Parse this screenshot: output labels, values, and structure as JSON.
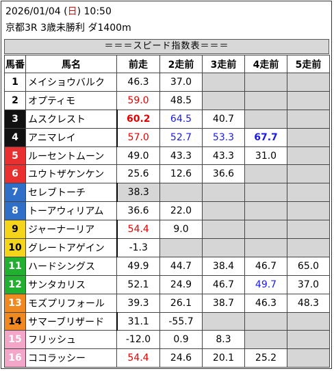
{
  "header": {
    "date": "2026/01/04 (",
    "weekday": "日",
    "time": ") 10:50",
    "race": "京都3R 3歳未勝利 ダ1400m"
  },
  "banner": "＝＝＝スピード指数表＝＝＝",
  "columns": [
    "馬番",
    "馬名",
    "前走",
    "2走前",
    "3走前",
    "4走前",
    "5走前"
  ],
  "colors": {
    "gate1": "#ffffff",
    "gate2": "#ffffff",
    "gate3": "#111111",
    "gate4": "#111111",
    "gate5": "#e83030",
    "gate6": "#e83030",
    "gate7": "#2f6fc8",
    "gate8": "#2f6fc8",
    "gate9": "#f5d51a",
    "gate10": "#f5d51a",
    "gate11": "#22b030",
    "gate12": "#22b030",
    "gate13": "#f08a20",
    "gate14": "#f08a20",
    "gate15": "#f4a6c8",
    "gate16": "#f4a6c8",
    "highlight_red": "#e60000",
    "highlight_blue": "#1a1ae6",
    "empty_cell": "#d6d6d6"
  },
  "rows": [
    {
      "num": "1",
      "name": "メイショウバルク",
      "c": [
        {
          "v": "46.3"
        },
        {
          "v": "37.0"
        },
        {
          "v": ""
        },
        {
          "v": ""
        },
        {
          "v": ""
        }
      ]
    },
    {
      "num": "2",
      "name": "オプティモ",
      "c": [
        {
          "v": "59.0",
          "style": "red"
        },
        {
          "v": "48.5"
        },
        {
          "v": ""
        },
        {
          "v": ""
        },
        {
          "v": ""
        }
      ]
    },
    {
      "num": "3",
      "name": "ムスクレスト",
      "c": [
        {
          "v": "60.2",
          "style": "red-bold"
        },
        {
          "v": "64.5",
          "style": "blue"
        },
        {
          "v": "40.7"
        },
        {
          "v": ""
        },
        {
          "v": ""
        }
      ]
    },
    {
      "num": "4",
      "name": "アニマレイ",
      "c": [
        {
          "v": "57.0",
          "style": "red"
        },
        {
          "v": "52.7",
          "style": "blue"
        },
        {
          "v": "53.3",
          "style": "blue"
        },
        {
          "v": "67.7",
          "style": "blue-bold"
        },
        {
          "v": ""
        }
      ]
    },
    {
      "num": "5",
      "name": "ルーセントムーン",
      "c": [
        {
          "v": "49.0"
        },
        {
          "v": "43.3"
        },
        {
          "v": "43.3"
        },
        {
          "v": "31.0"
        },
        {
          "v": ""
        }
      ]
    },
    {
      "num": "6",
      "name": "ユウトザケンケン",
      "c": [
        {
          "v": "25.6"
        },
        {
          "v": "12.6"
        },
        {
          "v": "36.6"
        },
        {
          "v": ""
        },
        {
          "v": ""
        }
      ]
    },
    {
      "num": "7",
      "name": "セレブトーチ",
      "c": [
        {
          "v": "38.3",
          "shade": true
        },
        {
          "v": ""
        },
        {
          "v": ""
        },
        {
          "v": ""
        },
        {
          "v": ""
        }
      ]
    },
    {
      "num": "8",
      "name": "トーアウィリアム",
      "c": [
        {
          "v": "36.6"
        },
        {
          "v": "22.0"
        },
        {
          "v": ""
        },
        {
          "v": ""
        },
        {
          "v": ""
        }
      ]
    },
    {
      "num": "9",
      "name": "ジャーナーリア",
      "c": [
        {
          "v": "54.4",
          "style": "red"
        },
        {
          "v": "9.0"
        },
        {
          "v": ""
        },
        {
          "v": ""
        },
        {
          "v": ""
        }
      ]
    },
    {
      "num": "10",
      "name": "グレートアゲイン",
      "c": [
        {
          "v": "-1.3"
        },
        {
          "v": ""
        },
        {
          "v": ""
        },
        {
          "v": ""
        },
        {
          "v": ""
        }
      ]
    },
    {
      "num": "11",
      "name": "ハードシングス",
      "c": [
        {
          "v": "49.9"
        },
        {
          "v": "44.7"
        },
        {
          "v": "38.4"
        },
        {
          "v": "46.7"
        },
        {
          "v": "65.0"
        }
      ]
    },
    {
      "num": "12",
      "name": "サンタカリス",
      "c": [
        {
          "v": "52.1"
        },
        {
          "v": "24.9"
        },
        {
          "v": "46.7"
        },
        {
          "v": "49.7",
          "style": "blue"
        },
        {
          "v": "37.0"
        }
      ]
    },
    {
      "num": "13",
      "name": "モズプリフォール",
      "c": [
        {
          "v": "39.3"
        },
        {
          "v": "26.1"
        },
        {
          "v": "38.7"
        },
        {
          "v": "46.3"
        },
        {
          "v": "48.3"
        }
      ]
    },
    {
      "num": "14",
      "name": "サマーブリザード",
      "c": [
        {
          "v": "31.1"
        },
        {
          "v": "-55.7"
        },
        {
          "v": ""
        },
        {
          "v": ""
        },
        {
          "v": ""
        }
      ]
    },
    {
      "num": "15",
      "name": "フリッシュ",
      "c": [
        {
          "v": "-12.0"
        },
        {
          "v": "0.9"
        },
        {
          "v": "8.3"
        },
        {
          "v": ""
        },
        {
          "v": ""
        }
      ]
    },
    {
      "num": "16",
      "name": "ココラッシー",
      "c": [
        {
          "v": "54.4",
          "style": "red"
        },
        {
          "v": "24.6"
        },
        {
          "v": "20.1"
        },
        {
          "v": "25.2"
        },
        {
          "v": ""
        }
      ]
    }
  ]
}
